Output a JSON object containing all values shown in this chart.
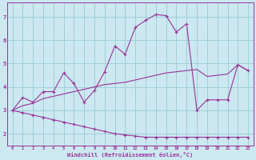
{
  "xlabel": "Windchill (Refroidissement éolien,°C)",
  "bg_color": "#cce8f0",
  "grid_color": "#99ccd9",
  "line_color": "#993399",
  "xlim": [
    -0.5,
    23.5
  ],
  "ylim": [
    1.5,
    7.6
  ],
  "yticks": [
    2,
    3,
    4,
    5,
    6,
    7
  ],
  "xticks": [
    0,
    1,
    2,
    3,
    4,
    5,
    6,
    7,
    8,
    9,
    10,
    11,
    12,
    13,
    14,
    15,
    16,
    17,
    18,
    19,
    20,
    21,
    22,
    23
  ],
  "line1_x": [
    0,
    1,
    2,
    3,
    4,
    5,
    6,
    7,
    8,
    9,
    10,
    11,
    12,
    13,
    14,
    15,
    16,
    17,
    18,
    19,
    20,
    21,
    22,
    23
  ],
  "line1_y": [
    3.0,
    3.55,
    3.35,
    3.8,
    3.8,
    4.6,
    4.15,
    3.35,
    3.85,
    4.65,
    5.75,
    5.4,
    6.55,
    6.85,
    7.1,
    7.05,
    6.35,
    6.7,
    3.0,
    3.45,
    3.45,
    3.45,
    4.95,
    4.7
  ],
  "line2_x": [
    0,
    1,
    2,
    3,
    4,
    5,
    6,
    7,
    8,
    9,
    10,
    11,
    12,
    13,
    14,
    15,
    16,
    17,
    18,
    19,
    20,
    21,
    22,
    23
  ],
  "line2_y": [
    3.0,
    3.2,
    3.3,
    3.5,
    3.6,
    3.7,
    3.8,
    3.9,
    4.0,
    4.1,
    4.15,
    4.2,
    4.3,
    4.4,
    4.5,
    4.6,
    4.65,
    4.7,
    4.75,
    4.45,
    4.5,
    4.55,
    4.95,
    4.7
  ],
  "line3_x": [
    0,
    1,
    2,
    3,
    4,
    5,
    6,
    7,
    8,
    9,
    10,
    11,
    12,
    13,
    14,
    15,
    16,
    17,
    18,
    19,
    20,
    21,
    22,
    23
  ],
  "line3_y": [
    3.0,
    2.9,
    2.8,
    2.7,
    2.6,
    2.5,
    2.4,
    2.3,
    2.2,
    2.1,
    2.0,
    1.95,
    1.9,
    1.85,
    1.85,
    1.85,
    1.85,
    1.85,
    1.85,
    1.85,
    1.85,
    1.85,
    1.85,
    1.85
  ]
}
